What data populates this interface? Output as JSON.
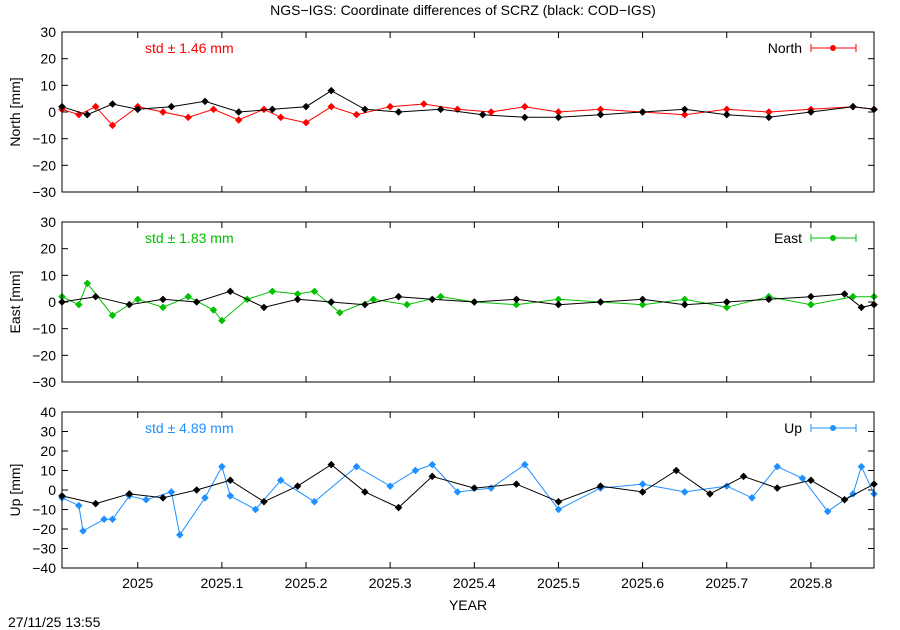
{
  "chart_data": {
    "type": "scatter",
    "title": "NGS−IGS: Coordinate differences of SCRZ (black: COD−IGS)",
    "xlabel": "YEAR",
    "xlim": [
      2024.91,
      2025.875
    ],
    "xticks": [
      2025,
      2025.1,
      2025.2,
      2025.3,
      2025.4,
      2025.5,
      2025.6,
      2025.7,
      2025.8
    ],
    "xtick_labels": [
      "2025",
      "2025.1",
      "2025.2",
      "2025.3",
      "2025.4",
      "2025.5",
      "2025.6",
      "2025.7",
      "2025.8"
    ],
    "timestamp": "27/11/25 13:55",
    "legend_position": "top-right",
    "panels": [
      {
        "name": "North",
        "ylabel": "North [mm]",
        "ylim": [
          -30,
          30
        ],
        "yticks": [
          30,
          20,
          10,
          0,
          -10,
          -20,
          -30
        ],
        "ytick_labels": [
          "30",
          "20",
          "10",
          "0",
          "−10",
          "−20",
          "−30"
        ],
        "std_label": "std ± 1.46 mm",
        "legend_label": "North",
        "color": "#ff0000",
        "reference_color": "#000000",
        "series": [
          {
            "name": "North",
            "x": [
              2024.91,
              2024.93,
              2024.95,
              2024.97,
              2025.0,
              2025.03,
              2025.06,
              2025.09,
              2025.12,
              2025.15,
              2025.17,
              2025.2,
              2025.23,
              2025.26,
              2025.3,
              2025.34,
              2025.38,
              2025.42,
              2025.46,
              2025.5,
              2025.55,
              2025.6,
              2025.65,
              2025.7,
              2025.75,
              2025.8,
              2025.85,
              2025.875
            ],
            "y": [
              1,
              -1,
              2,
              -5,
              2,
              0,
              -2,
              1,
              -3,
              1,
              -2,
              -4,
              2,
              -1,
              2,
              3,
              1,
              0,
              2,
              0,
              1,
              0,
              -1,
              1,
              0,
              1,
              2,
              1
            ]
          },
          {
            "name": "COD-IGS",
            "x": [
              2024.91,
              2024.94,
              2024.97,
              2025.0,
              2025.04,
              2025.08,
              2025.12,
              2025.16,
              2025.2,
              2025.23,
              2025.27,
              2025.31,
              2025.36,
              2025.41,
              2025.46,
              2025.5,
              2025.55,
              2025.6,
              2025.65,
              2025.7,
              2025.75,
              2025.8,
              2025.85,
              2025.875
            ],
            "y": [
              2,
              -1,
              3,
              1,
              2,
              4,
              0,
              1,
              2,
              8,
              1,
              0,
              1,
              -1,
              -2,
              -2,
              -1,
              0,
              1,
              -1,
              -2,
              0,
              2,
              1
            ]
          }
        ]
      },
      {
        "name": "East",
        "ylabel": "East [mm]",
        "ylim": [
          -30,
          30
        ],
        "yticks": [
          30,
          20,
          10,
          0,
          -10,
          -20,
          -30
        ],
        "ytick_labels": [
          "30",
          "20",
          "10",
          "0",
          "−10",
          "−20",
          "−30"
        ],
        "std_label": "std ± 1.83 mm",
        "legend_label": "East",
        "color": "#00c000",
        "reference_color": "#000000",
        "series": [
          {
            "name": "East",
            "x": [
              2024.91,
              2024.93,
              2024.94,
              2024.97,
              2025.0,
              2025.03,
              2025.06,
              2025.09,
              2025.1,
              2025.13,
              2025.16,
              2025.19,
              2025.21,
              2025.24,
              2025.28,
              2025.32,
              2025.36,
              2025.4,
              2025.45,
              2025.5,
              2025.55,
              2025.6,
              2025.65,
              2025.7,
              2025.75,
              2025.8,
              2025.85,
              2025.875
            ],
            "y": [
              2,
              -1,
              7,
              -5,
              1,
              -2,
              2,
              -3,
              -7,
              1,
              4,
              3,
              4,
              -4,
              1,
              -1,
              2,
              0,
              -1,
              1,
              0,
              -1,
              1,
              -2,
              2,
              -1,
              2,
              2
            ]
          },
          {
            "name": "COD-IGS",
            "x": [
              2024.91,
              2024.95,
              2024.99,
              2025.03,
              2025.07,
              2025.11,
              2025.15,
              2025.19,
              2025.23,
              2025.27,
              2025.31,
              2025.35,
              2025.4,
              2025.45,
              2025.5,
              2025.55,
              2025.6,
              2025.65,
              2025.7,
              2025.75,
              2025.8,
              2025.84,
              2025.86,
              2025.875
            ],
            "y": [
              0,
              2,
              -1,
              1,
              0,
              4,
              -2,
              1,
              0,
              -1,
              2,
              1,
              0,
              1,
              -1,
              0,
              1,
              -1,
              0,
              1,
              2,
              3,
              -2,
              -1
            ]
          }
        ]
      },
      {
        "name": "Up",
        "ylabel": "Up [mm]",
        "ylim": [
          -40,
          40
        ],
        "yticks": [
          40,
          30,
          20,
          10,
          0,
          -10,
          -20,
          -30,
          -40
        ],
        "ytick_labels": [
          "40",
          "30",
          "20",
          "10",
          "0",
          "−10",
          "−20",
          "−30",
          "−40"
        ],
        "std_label": "std ± 4.89 mm",
        "legend_label": "Up",
        "color": "#1e90ff",
        "reference_color": "#000000",
        "series": [
          {
            "name": "Up",
            "x": [
              2024.91,
              2024.93,
              2024.935,
              2024.96,
              2024.97,
              2024.99,
              2025.01,
              2025.04,
              2025.05,
              2025.08,
              2025.1,
              2025.11,
              2025.14,
              2025.17,
              2025.21,
              2025.26,
              2025.3,
              2025.33,
              2025.35,
              2025.38,
              2025.42,
              2025.46,
              2025.5,
              2025.55,
              2025.6,
              2025.65,
              2025.7,
              2025.73,
              2025.76,
              2025.79,
              2025.82,
              2025.85,
              2025.86,
              2025.875
            ],
            "y": [
              -4,
              -8,
              -21,
              -15,
              -15,
              -3,
              -5,
              -1,
              -23,
              -4,
              12,
              -3,
              -10,
              5,
              -6,
              12,
              2,
              10,
              13,
              -1,
              1,
              13,
              -10,
              1,
              3,
              -1,
              2,
              -4,
              12,
              6,
              -11,
              -2,
              12,
              -2
            ]
          },
          {
            "name": "COD-IGS",
            "x": [
              2024.91,
              2024.95,
              2024.99,
              2025.03,
              2025.07,
              2025.11,
              2025.15,
              2025.19,
              2025.23,
              2025.27,
              2025.31,
              2025.35,
              2025.4,
              2025.45,
              2025.5,
              2025.55,
              2025.6,
              2025.64,
              2025.68,
              2025.72,
              2025.76,
              2025.8,
              2025.84,
              2025.875
            ],
            "y": [
              -3,
              -7,
              -2,
              -4,
              0,
              5,
              -6,
              2,
              13,
              -1,
              -9,
              7,
              1,
              3,
              -6,
              2,
              -1,
              10,
              -2,
              7,
              1,
              5,
              -5,
              3
            ]
          }
        ]
      }
    ]
  }
}
